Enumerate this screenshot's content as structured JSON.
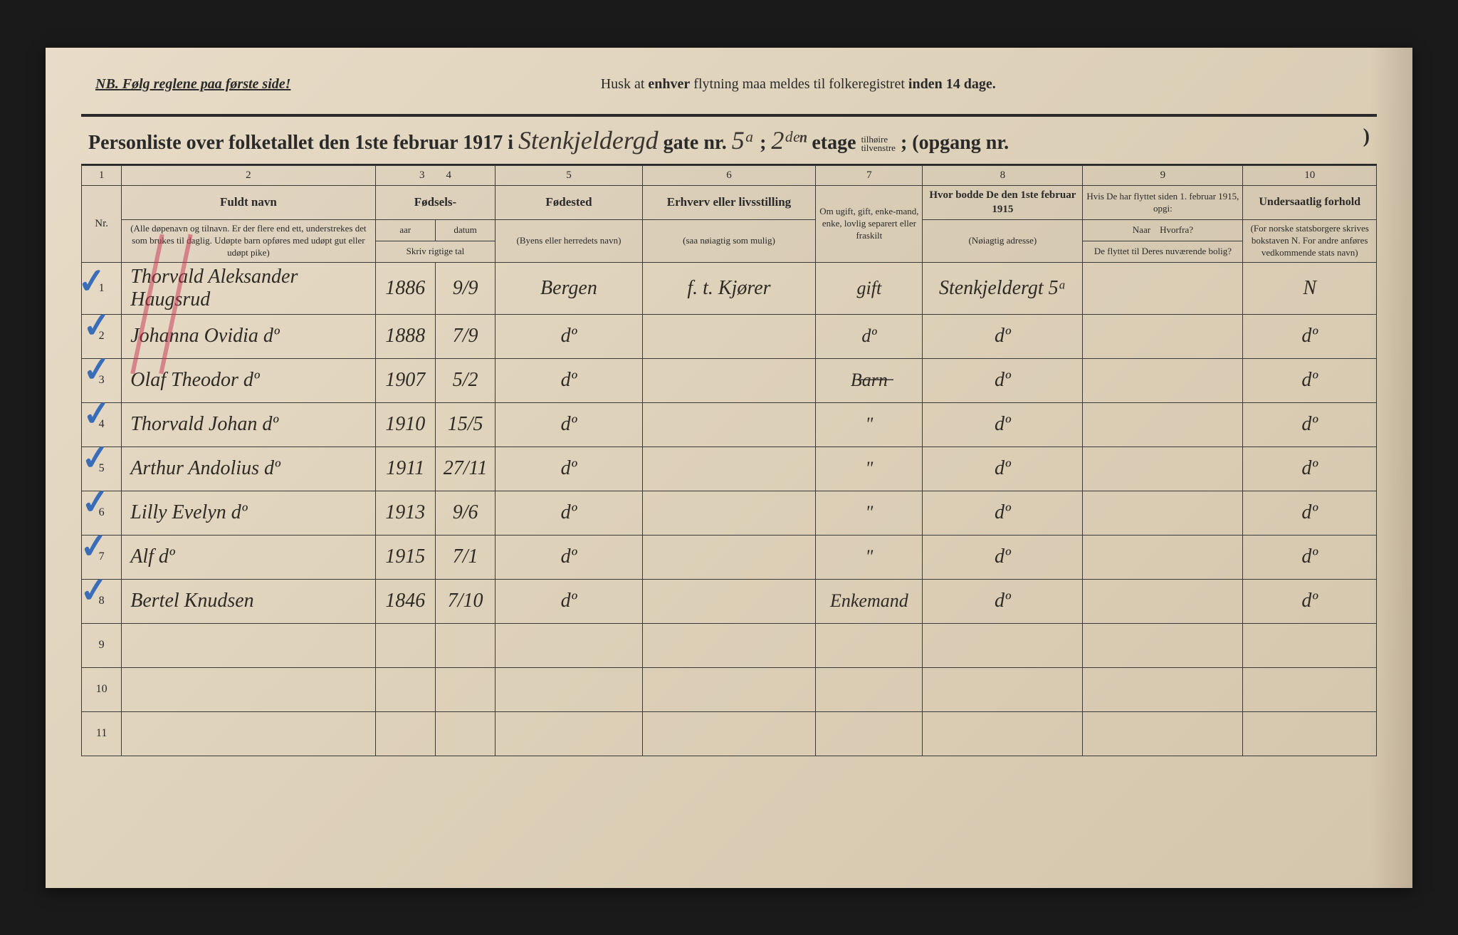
{
  "nb": {
    "left": "NB.   Følg reglene paa første side!",
    "center_pre": "Husk at ",
    "center_b1": "enhver",
    "center_mid": " flytning maa meldes til folkeregistret ",
    "center_b2": "inden 14 dage."
  },
  "title": {
    "prefix": "Personliste over folketallet den 1ste februar 1917 i ",
    "street": "Stenkjeldergd",
    "gate_label": " gate nr. ",
    "gate_nr": "5ᵃ",
    "sep1": " ; ",
    "etage_val": "2ᵈᵉⁿ",
    "etage_label": " etage ",
    "etage_small": "tilhøire\ntilvenstre",
    "sep2": "; (opgang nr.",
    "opgang": " ",
    "close": ")"
  },
  "headers": {
    "nums": [
      "1",
      "2",
      "3",
      "4",
      "5",
      "6",
      "7",
      "8",
      "9",
      "10"
    ],
    "nr": "Nr.",
    "fuldt_navn": "Fuldt navn",
    "fuldt_sub": "(Alle døpenavn og tilnavn. Er der flere end ett, understrekes det som brukes til daglig. Udøpte barn opføres med udøpt gut eller udøpt pike)",
    "fodsels": "Fødsels-",
    "aar": "aar",
    "datum": "datum",
    "skriv": "Skriv rigtige tal",
    "fodested": "Fødested",
    "fodested_sub": "(Byens eller herredets navn)",
    "erhverv": "Erhverv eller livsstilling",
    "erhverv_sub": "(saa nøiagtig som mulig)",
    "omugift": "Om ugift, gift, enke-mand, enke, lovlig separert eller fraskilt",
    "hvor1915": "Hvor bodde De den 1ste februar 1915",
    "hvor1915_sub": "(Nøiagtig adresse)",
    "hvis": "Hvis De har flyttet siden 1. februar 1915, opgi:",
    "naar": "Naar",
    "hvorfra": "Hvorfra?",
    "de_flyttet": "De flyttet til Deres nuværende bolig?",
    "undersaat": "Undersaatlig forhold",
    "undersaat_sub": "(For norske statsborgere skrives bokstaven N. For andre anføres vedkommende stats navn)"
  },
  "rows": [
    {
      "nr": "1",
      "navn": "Thorvald Aleksander Haugsrud",
      "aar": "1886",
      "datum": "9/9",
      "fodested": "Bergen",
      "erhverv": "f. t.  Kjører",
      "status": "gift",
      "adr": "Stenkjeldergt 5ᵃ",
      "col9": "",
      "nat": "N"
    },
    {
      "nr": "2",
      "navn": "Johanna Ovidia       dº",
      "aar": "1888",
      "datum": "7/9",
      "fodested": "dº",
      "erhverv": "",
      "status": "dº",
      "adr": "dº",
      "col9": "",
      "nat": "dº"
    },
    {
      "nr": "3",
      "navn": "Olaf Theodor       dº",
      "aar": "1907",
      "datum": "5/2",
      "fodested": "dº",
      "erhverv": "",
      "status": "B̶a̶r̶n̶",
      "adr": "dº",
      "col9": "",
      "nat": "dº"
    },
    {
      "nr": "4",
      "navn": "Thorvald Johan     dº",
      "aar": "1910",
      "datum": "15/5",
      "fodested": "dº",
      "erhverv": "",
      "status": "\"",
      "adr": "dº",
      "col9": "",
      "nat": "dº"
    },
    {
      "nr": "5",
      "navn": "Arthur Andolius    dº",
      "aar": "1911",
      "datum": "27/11",
      "fodested": "dº",
      "erhverv": "",
      "status": "\"",
      "adr": "dº",
      "col9": "",
      "nat": "dº"
    },
    {
      "nr": "6",
      "navn": "Lilly Evelyn       dº",
      "aar": "1913",
      "datum": "9/6",
      "fodested": "dº",
      "erhverv": "",
      "status": "\"",
      "adr": "dº",
      "col9": "",
      "nat": "dº"
    },
    {
      "nr": "7",
      "navn": "Alf              dº",
      "aar": "1915",
      "datum": "7/1",
      "fodested": "dº",
      "erhverv": "",
      "status": "\"",
      "adr": "dº",
      "col9": "",
      "nat": "dº"
    },
    {
      "nr": "8",
      "navn": "Bertel   Knudsen",
      "aar": "1846",
      "datum": "7/10",
      "fodested": "dº",
      "erhverv": "",
      "status": "Enkemand",
      "adr": "dº",
      "col9": "",
      "nat": "dº"
    }
  ],
  "empty_rows": [
    "9",
    "10",
    "11"
  ],
  "colors": {
    "paper": "#e0d4bc",
    "ink": "#2a2a2a",
    "blue_check": "#3a6db8",
    "red_mark": "#c83250"
  }
}
